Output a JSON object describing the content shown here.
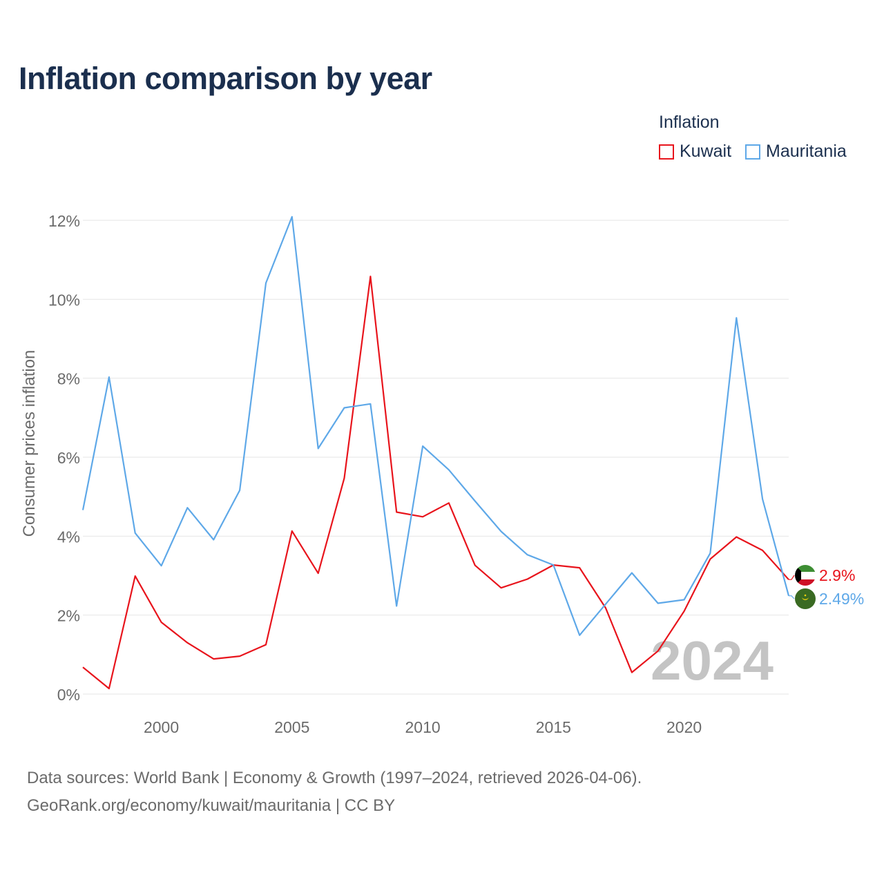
{
  "title": "Inflation comparison by year",
  "legend": {
    "title": "Inflation",
    "items": [
      {
        "label": "Kuwait",
        "color": "#e8141c"
      },
      {
        "label": "Mauritania",
        "color": "#5ea8e8"
      }
    ]
  },
  "source": {
    "line1": "Data sources: World Bank | Economy & Growth (1997–2024, retrieved 2026-04-06).",
    "line2": "GeoRank.org/economy/kuwait/mauritania | CC BY"
  },
  "chart_data": {
    "type": "line",
    "ylabel": "Consumer prices inflation",
    "xlabel": "",
    "x": [
      1997,
      1998,
      1999,
      2000,
      2001,
      2002,
      2003,
      2004,
      2005,
      2006,
      2007,
      2008,
      2009,
      2010,
      2011,
      2012,
      2013,
      2014,
      2015,
      2016,
      2017,
      2018,
      2019,
      2020,
      2021,
      2022,
      2023,
      2024
    ],
    "xlim": [
      1997,
      2024
    ],
    "ylim": [
      0,
      12
    ],
    "xticks": [
      2000,
      2005,
      2010,
      2015,
      2020
    ],
    "yticks": [
      0,
      2,
      4,
      6,
      8,
      10,
      12
    ],
    "ytick_labels": [
      "0%",
      "2%",
      "4%",
      "6%",
      "8%",
      "10%",
      "12%"
    ],
    "year_watermark": "2024",
    "grid": true,
    "series": [
      {
        "name": "Kuwait",
        "color": "#e8141c",
        "end_label": "2.9%",
        "values": [
          0.68,
          0.14,
          2.99,
          1.82,
          1.3,
          0.89,
          0.96,
          1.25,
          4.13,
          3.06,
          5.47,
          10.58,
          4.61,
          4.49,
          4.84,
          3.26,
          2.69,
          2.91,
          3.27,
          3.2,
          2.18,
          0.55,
          1.09,
          2.1,
          3.42,
          3.98,
          3.64,
          2.9
        ]
      },
      {
        "name": "Mauritania",
        "color": "#5ea8e8",
        "end_label": "2.49%",
        "values": [
          4.66,
          8.03,
          4.08,
          3.25,
          4.72,
          3.91,
          5.16,
          10.41,
          12.09,
          6.22,
          7.25,
          7.35,
          2.23,
          6.28,
          5.68,
          4.89,
          4.12,
          3.53,
          3.27,
          1.49,
          2.28,
          3.07,
          2.3,
          2.39,
          3.57,
          9.53,
          4.94,
          2.49
        ]
      }
    ]
  }
}
